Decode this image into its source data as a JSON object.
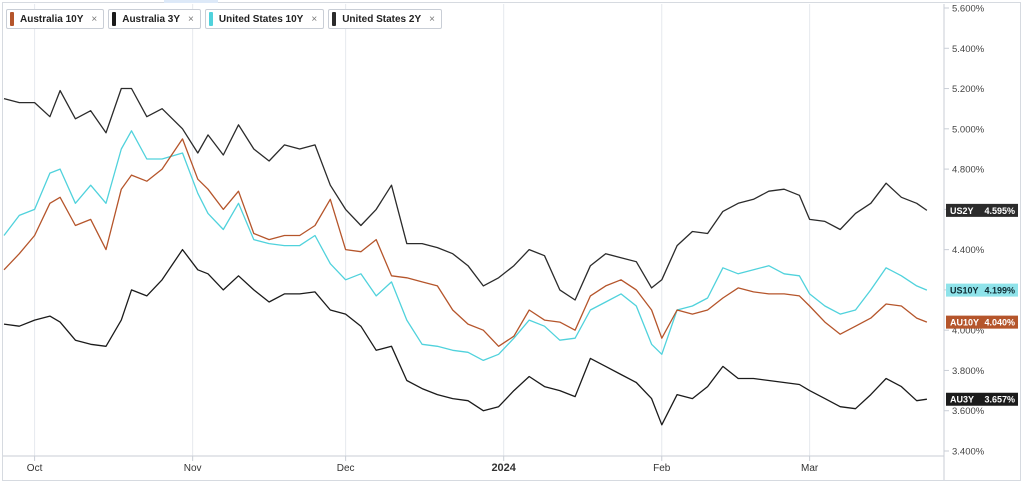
{
  "legend": [
    {
      "label": "Australia 10Y",
      "color": "#b5552b",
      "close": "×"
    },
    {
      "label": "Australia 3Y",
      "color": "#1b1b1b",
      "close": "×"
    },
    {
      "label": "United States 10Y",
      "color": "#50d2dc",
      "close": "×"
    },
    {
      "label": "United States 2Y",
      "color": "#2b2b2b",
      "close": "×"
    }
  ],
  "chart_data": {
    "type": "line",
    "x_axis": {
      "type": "time",
      "start": "2023-09-25",
      "end": "2024-03-25",
      "ticks": [
        {
          "date": "2023-10-01",
          "label": "Oct",
          "bold": false
        },
        {
          "date": "2023-11-01",
          "label": "Nov",
          "bold": false
        },
        {
          "date": "2023-12-01",
          "label": "Dec",
          "bold": false
        },
        {
          "date": "2024-01-01",
          "label": "2024",
          "bold": true
        },
        {
          "date": "2024-02-01",
          "label": "Feb",
          "bold": false
        },
        {
          "date": "2024-03-01",
          "label": "Mar",
          "bold": false
        }
      ]
    },
    "y_axis": {
      "min": 3.4,
      "max": 5.6,
      "side": "right",
      "unit": "%",
      "ticks": [
        "3.400%",
        "3.600%",
        "3.800%",
        "4.000%",
        "4.200%",
        "4.400%",
        "4.600%",
        "4.800%",
        "5.000%",
        "5.200%",
        "5.400%",
        "5.600%"
      ]
    },
    "grid": {
      "vertical": true,
      "horizontal": false
    },
    "series": [
      {
        "name": "United States 2Y",
        "color": "#2b2b2b",
        "badge": "US2Y",
        "last_label": "4.595%",
        "points": [
          [
            "2023-09-25",
            5.15
          ],
          [
            "2023-09-28",
            5.13
          ],
          [
            "2023-10-01",
            5.13
          ],
          [
            "2023-10-04",
            5.06
          ],
          [
            "2023-10-06",
            5.19
          ],
          [
            "2023-10-09",
            5.05
          ],
          [
            "2023-10-12",
            5.09
          ],
          [
            "2023-10-15",
            4.98
          ],
          [
            "2023-10-18",
            5.2
          ],
          [
            "2023-10-20",
            5.2
          ],
          [
            "2023-10-23",
            5.06
          ],
          [
            "2023-10-26",
            5.1
          ],
          [
            "2023-10-30",
            5.0
          ],
          [
            "2023-11-02",
            4.88
          ],
          [
            "2023-11-04",
            4.97
          ],
          [
            "2023-11-07",
            4.87
          ],
          [
            "2023-11-10",
            5.02
          ],
          [
            "2023-11-13",
            4.9
          ],
          [
            "2023-11-16",
            4.84
          ],
          [
            "2023-11-19",
            4.92
          ],
          [
            "2023-11-22",
            4.9
          ],
          [
            "2023-11-25",
            4.92
          ],
          [
            "2023-11-28",
            4.72
          ],
          [
            "2023-12-01",
            4.6
          ],
          [
            "2023-12-04",
            4.52
          ],
          [
            "2023-12-07",
            4.6
          ],
          [
            "2023-12-10",
            4.72
          ],
          [
            "2023-12-13",
            4.43
          ],
          [
            "2023-12-16",
            4.43
          ],
          [
            "2023-12-19",
            4.41
          ],
          [
            "2023-12-22",
            4.38
          ],
          [
            "2023-12-25",
            4.32
          ],
          [
            "2023-12-28",
            4.22
          ],
          [
            "2023-12-31",
            4.26
          ],
          [
            "2024-01-03",
            4.32
          ],
          [
            "2024-01-06",
            4.4
          ],
          [
            "2024-01-09",
            4.37
          ],
          [
            "2024-01-12",
            4.2
          ],
          [
            "2024-01-15",
            4.15
          ],
          [
            "2024-01-18",
            4.32
          ],
          [
            "2024-01-21",
            4.38
          ],
          [
            "2024-01-24",
            4.36
          ],
          [
            "2024-01-27",
            4.34
          ],
          [
            "2024-01-30",
            4.21
          ],
          [
            "2024-02-01",
            4.25
          ],
          [
            "2024-02-04",
            4.42
          ],
          [
            "2024-02-07",
            4.49
          ],
          [
            "2024-02-10",
            4.48
          ],
          [
            "2024-02-13",
            4.59
          ],
          [
            "2024-02-16",
            4.63
          ],
          [
            "2024-02-19",
            4.65
          ],
          [
            "2024-02-22",
            4.69
          ],
          [
            "2024-02-25",
            4.7
          ],
          [
            "2024-02-28",
            4.67
          ],
          [
            "2024-03-01",
            4.55
          ],
          [
            "2024-03-04",
            4.54
          ],
          [
            "2024-03-07",
            4.5
          ],
          [
            "2024-03-10",
            4.58
          ],
          [
            "2024-03-13",
            4.63
          ],
          [
            "2024-03-16",
            4.73
          ],
          [
            "2024-03-19",
            4.66
          ],
          [
            "2024-03-22",
            4.63
          ],
          [
            "2024-03-24",
            4.595
          ]
        ]
      },
      {
        "name": "United States 10Y",
        "color": "#50d2dc",
        "badge": "US10Y",
        "last_label": "4.199%",
        "points": [
          [
            "2023-09-25",
            4.47
          ],
          [
            "2023-09-28",
            4.57
          ],
          [
            "2023-10-01",
            4.6
          ],
          [
            "2023-10-04",
            4.78
          ],
          [
            "2023-10-06",
            4.8
          ],
          [
            "2023-10-09",
            4.63
          ],
          [
            "2023-10-12",
            4.72
          ],
          [
            "2023-10-15",
            4.63
          ],
          [
            "2023-10-18",
            4.9
          ],
          [
            "2023-10-20",
            4.99
          ],
          [
            "2023-10-23",
            4.85
          ],
          [
            "2023-10-26",
            4.85
          ],
          [
            "2023-10-30",
            4.88
          ],
          [
            "2023-11-02",
            4.68
          ],
          [
            "2023-11-04",
            4.58
          ],
          [
            "2023-11-07",
            4.5
          ],
          [
            "2023-11-10",
            4.63
          ],
          [
            "2023-11-13",
            4.45
          ],
          [
            "2023-11-16",
            4.43
          ],
          [
            "2023-11-19",
            4.42
          ],
          [
            "2023-11-22",
            4.42
          ],
          [
            "2023-11-25",
            4.47
          ],
          [
            "2023-11-28",
            4.33
          ],
          [
            "2023-12-01",
            4.25
          ],
          [
            "2023-12-04",
            4.28
          ],
          [
            "2023-12-07",
            4.17
          ],
          [
            "2023-12-10",
            4.24
          ],
          [
            "2023-12-13",
            4.05
          ],
          [
            "2023-12-16",
            3.93
          ],
          [
            "2023-12-19",
            3.92
          ],
          [
            "2023-12-22",
            3.9
          ],
          [
            "2023-12-25",
            3.89
          ],
          [
            "2023-12-28",
            3.85
          ],
          [
            "2023-12-31",
            3.88
          ],
          [
            "2024-01-03",
            3.96
          ],
          [
            "2024-01-06",
            4.05
          ],
          [
            "2024-01-09",
            4.02
          ],
          [
            "2024-01-12",
            3.95
          ],
          [
            "2024-01-15",
            3.96
          ],
          [
            "2024-01-18",
            4.1
          ],
          [
            "2024-01-21",
            4.14
          ],
          [
            "2024-01-24",
            4.18
          ],
          [
            "2024-01-27",
            4.12
          ],
          [
            "2024-01-30",
            3.93
          ],
          [
            "2024-02-01",
            3.88
          ],
          [
            "2024-02-04",
            4.1
          ],
          [
            "2024-02-07",
            4.12
          ],
          [
            "2024-02-10",
            4.16
          ],
          [
            "2024-02-13",
            4.31
          ],
          [
            "2024-02-16",
            4.28
          ],
          [
            "2024-02-19",
            4.3
          ],
          [
            "2024-02-22",
            4.32
          ],
          [
            "2024-02-25",
            4.28
          ],
          [
            "2024-02-28",
            4.27
          ],
          [
            "2024-03-01",
            4.18
          ],
          [
            "2024-03-04",
            4.12
          ],
          [
            "2024-03-07",
            4.08
          ],
          [
            "2024-03-10",
            4.1
          ],
          [
            "2024-03-13",
            4.2
          ],
          [
            "2024-03-16",
            4.31
          ],
          [
            "2024-03-19",
            4.27
          ],
          [
            "2024-03-22",
            4.22
          ],
          [
            "2024-03-24",
            4.199
          ]
        ]
      },
      {
        "name": "Australia 10Y",
        "color": "#b5552b",
        "badge": "AU10Y",
        "last_label": "4.040%",
        "points": [
          [
            "2023-09-25",
            4.3
          ],
          [
            "2023-09-28",
            4.38
          ],
          [
            "2023-10-01",
            4.47
          ],
          [
            "2023-10-04",
            4.63
          ],
          [
            "2023-10-06",
            4.66
          ],
          [
            "2023-10-09",
            4.52
          ],
          [
            "2023-10-12",
            4.55
          ],
          [
            "2023-10-15",
            4.4
          ],
          [
            "2023-10-18",
            4.7
          ],
          [
            "2023-10-20",
            4.77
          ],
          [
            "2023-10-23",
            4.74
          ],
          [
            "2023-10-26",
            4.8
          ],
          [
            "2023-10-30",
            4.95
          ],
          [
            "2023-11-02",
            4.75
          ],
          [
            "2023-11-04",
            4.7
          ],
          [
            "2023-11-07",
            4.6
          ],
          [
            "2023-11-10",
            4.69
          ],
          [
            "2023-11-13",
            4.48
          ],
          [
            "2023-11-16",
            4.45
          ],
          [
            "2023-11-19",
            4.47
          ],
          [
            "2023-11-22",
            4.47
          ],
          [
            "2023-11-25",
            4.52
          ],
          [
            "2023-11-28",
            4.65
          ],
          [
            "2023-12-01",
            4.4
          ],
          [
            "2023-12-04",
            4.39
          ],
          [
            "2023-12-07",
            4.45
          ],
          [
            "2023-12-10",
            4.27
          ],
          [
            "2023-12-13",
            4.26
          ],
          [
            "2023-12-16",
            4.24
          ],
          [
            "2023-12-19",
            4.22
          ],
          [
            "2023-12-22",
            4.1
          ],
          [
            "2023-12-25",
            4.03
          ],
          [
            "2023-12-28",
            4.0
          ],
          [
            "2023-12-31",
            3.92
          ],
          [
            "2024-01-03",
            3.97
          ],
          [
            "2024-01-06",
            4.1
          ],
          [
            "2024-01-09",
            4.05
          ],
          [
            "2024-01-12",
            4.04
          ],
          [
            "2024-01-15",
            4.0
          ],
          [
            "2024-01-18",
            4.17
          ],
          [
            "2024-01-21",
            4.22
          ],
          [
            "2024-01-24",
            4.25
          ],
          [
            "2024-01-27",
            4.2
          ],
          [
            "2024-01-30",
            4.1
          ],
          [
            "2024-02-01",
            3.96
          ],
          [
            "2024-02-04",
            4.1
          ],
          [
            "2024-02-07",
            4.08
          ],
          [
            "2024-02-10",
            4.1
          ],
          [
            "2024-02-13",
            4.16
          ],
          [
            "2024-02-16",
            4.21
          ],
          [
            "2024-02-19",
            4.19
          ],
          [
            "2024-02-22",
            4.18
          ],
          [
            "2024-02-25",
            4.18
          ],
          [
            "2024-02-28",
            4.17
          ],
          [
            "2024-03-01",
            4.12
          ],
          [
            "2024-03-04",
            4.04
          ],
          [
            "2024-03-07",
            3.98
          ],
          [
            "2024-03-10",
            4.02
          ],
          [
            "2024-03-13",
            4.06
          ],
          [
            "2024-03-16",
            4.13
          ],
          [
            "2024-03-19",
            4.12
          ],
          [
            "2024-03-22",
            4.06
          ],
          [
            "2024-03-24",
            4.04
          ]
        ]
      },
      {
        "name": "Australia 3Y",
        "color": "#1b1b1b",
        "badge": "AU3Y",
        "last_label": "3.657%",
        "points": [
          [
            "2023-09-25",
            4.03
          ],
          [
            "2023-09-28",
            4.02
          ],
          [
            "2023-10-01",
            4.05
          ],
          [
            "2023-10-04",
            4.07
          ],
          [
            "2023-10-06",
            4.04
          ],
          [
            "2023-10-09",
            3.95
          ],
          [
            "2023-10-12",
            3.93
          ],
          [
            "2023-10-15",
            3.92
          ],
          [
            "2023-10-18",
            4.05
          ],
          [
            "2023-10-20",
            4.2
          ],
          [
            "2023-10-23",
            4.17
          ],
          [
            "2023-10-26",
            4.25
          ],
          [
            "2023-10-30",
            4.4
          ],
          [
            "2023-11-02",
            4.3
          ],
          [
            "2023-11-04",
            4.28
          ],
          [
            "2023-11-07",
            4.2
          ],
          [
            "2023-11-10",
            4.27
          ],
          [
            "2023-11-13",
            4.2
          ],
          [
            "2023-11-16",
            4.14
          ],
          [
            "2023-11-19",
            4.18
          ],
          [
            "2023-11-22",
            4.18
          ],
          [
            "2023-11-25",
            4.19
          ],
          [
            "2023-11-28",
            4.1
          ],
          [
            "2023-12-01",
            4.08
          ],
          [
            "2023-12-04",
            4.02
          ],
          [
            "2023-12-07",
            3.9
          ],
          [
            "2023-12-10",
            3.92
          ],
          [
            "2023-12-13",
            3.75
          ],
          [
            "2023-12-16",
            3.71
          ],
          [
            "2023-12-19",
            3.68
          ],
          [
            "2023-12-22",
            3.66
          ],
          [
            "2023-12-25",
            3.65
          ],
          [
            "2023-12-28",
            3.6
          ],
          [
            "2023-12-31",
            3.62
          ],
          [
            "2024-01-03",
            3.7
          ],
          [
            "2024-01-06",
            3.77
          ],
          [
            "2024-01-09",
            3.72
          ],
          [
            "2024-01-12",
            3.7
          ],
          [
            "2024-01-15",
            3.67
          ],
          [
            "2024-01-18",
            3.86
          ],
          [
            "2024-01-21",
            3.82
          ],
          [
            "2024-01-24",
            3.78
          ],
          [
            "2024-01-27",
            3.74
          ],
          [
            "2024-01-30",
            3.66
          ],
          [
            "2024-02-01",
            3.53
          ],
          [
            "2024-02-04",
            3.68
          ],
          [
            "2024-02-07",
            3.66
          ],
          [
            "2024-02-10",
            3.72
          ],
          [
            "2024-02-13",
            3.82
          ],
          [
            "2024-02-16",
            3.76
          ],
          [
            "2024-02-19",
            3.76
          ],
          [
            "2024-02-22",
            3.75
          ],
          [
            "2024-02-25",
            3.74
          ],
          [
            "2024-02-28",
            3.73
          ],
          [
            "2024-03-01",
            3.7
          ],
          [
            "2024-03-04",
            3.66
          ],
          [
            "2024-03-07",
            3.62
          ],
          [
            "2024-03-10",
            3.61
          ],
          [
            "2024-03-13",
            3.68
          ],
          [
            "2024-03-16",
            3.76
          ],
          [
            "2024-03-19",
            3.72
          ],
          [
            "2024-03-22",
            3.65
          ],
          [
            "2024-03-24",
            3.657
          ]
        ]
      }
    ]
  }
}
